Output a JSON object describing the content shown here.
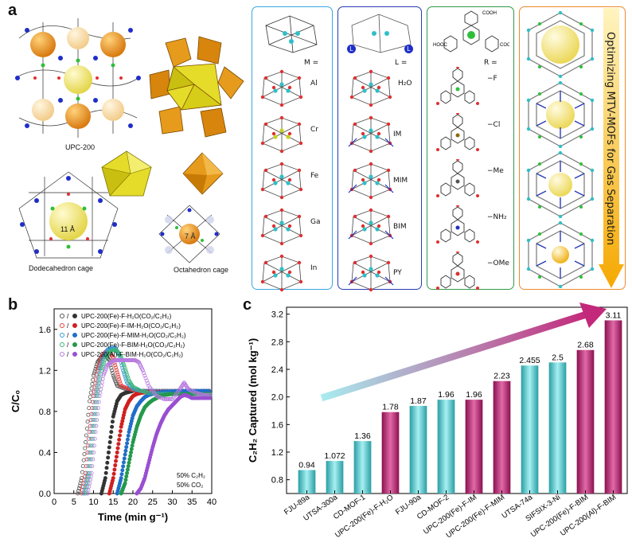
{
  "panel_a": {
    "letter": "a",
    "upc_label": "UPC-200",
    "dodeca_label": "Dodecahedron cage",
    "octa_label": "Octahedron cage",
    "dodeca_size": "11 Å",
    "octa_size": "7 Å",
    "metals_header": "M =",
    "metals": [
      "Al",
      "Cr",
      "Fe",
      "Ga",
      "In"
    ],
    "ligand_header": "L =",
    "ligands": [
      "H₂O",
      "IM",
      "MIM",
      "BIM",
      "PY"
    ],
    "r_header": "R =",
    "r_groups": [
      "−F",
      "−Cl",
      "−Me",
      "−NH₂",
      "−OMe"
    ],
    "arrow_text": "Optimizing MTV-MOFs for Gas Separation",
    "colors": {
      "metal_box": "#3aa7e0",
      "ligand_box": "#2a3bb5",
      "r_box": "#2f9a4a",
      "optimize_box": "#f08a2a",
      "arrow": "#f5b400"
    }
  },
  "panel_b": {
    "letter": "b",
    "chart_data": {
      "type": "scatter",
      "xlabel": "Time (min g⁻¹)",
      "ylabel": "C/C₀",
      "xlim": [
        0,
        40
      ],
      "ylim": [
        0,
        1.8
      ],
      "xticks": [
        0,
        5,
        10,
        15,
        20,
        25,
        30,
        35,
        40
      ],
      "yticks": [
        0.0,
        0.4,
        0.8,
        1.2,
        1.6
      ],
      "legend_position": "top-left",
      "annotation": [
        "50% C₂H₂",
        "50% CO₂"
      ],
      "series": [
        {
          "name": "UPC-200(Fe)-F-H₂O(CO₂/C₂H₂)",
          "color": "#555555",
          "x": [
            6,
            7,
            8,
            9,
            10,
            11,
            12,
            13,
            14,
            15,
            16,
            18,
            20,
            24,
            28,
            32,
            36,
            40
          ],
          "y": [
            0,
            0.15,
            0.5,
            0.9,
            1.15,
            1.28,
            1.33,
            1.35,
            1.3,
            1.15,
            1.05,
            1.02,
            1.0,
            1.0,
            1.0,
            1.0,
            1.0,
            1.0
          ]
        },
        {
          "name": "UPC-200(Fe)-F-H₂O(CO₂/C₂H₂)",
          "color": "#333333",
          "x": [
            12,
            13,
            14,
            15,
            16,
            17,
            18,
            19,
            20,
            24,
            28,
            32,
            36,
            40
          ],
          "y": [
            0,
            0.15,
            0.45,
            0.75,
            0.9,
            0.96,
            0.98,
            0.99,
            1.0,
            1.0,
            1.0,
            1.0,
            1.0,
            1.0
          ]
        },
        {
          "name": "UPC-200(Fe)-F-IM-H₂O(CO₂/C₂H₂)",
          "color": "#e83a3a",
          "x": [
            7,
            8,
            9,
            10,
            11,
            12,
            13,
            14,
            15,
            16,
            17,
            19,
            21,
            25,
            30,
            35,
            40
          ],
          "y": [
            0,
            0.2,
            0.6,
            0.95,
            1.2,
            1.33,
            1.38,
            1.39,
            1.32,
            1.18,
            1.05,
            1.02,
            1.0,
            1.0,
            1.0,
            1.0,
            1.0
          ]
        },
        {
          "name": "UPC-200(Fe)-F-IM-H₂O(CO₂/C₂H₂)",
          "color": "#d02020",
          "x": [
            14,
            15,
            16,
            17,
            18,
            19,
            20,
            21,
            22,
            24,
            28,
            32,
            36,
            40
          ],
          "y": [
            0,
            0.15,
            0.4,
            0.65,
            0.82,
            0.9,
            0.95,
            0.97,
            0.98,
            0.99,
            1.0,
            1.0,
            1.0,
            1.0
          ]
        },
        {
          "name": "UPC-200(Fe)-F-MIM-H₂O(CO₂/C₂H₂)",
          "color": "#3a9ad8",
          "x": [
            7.5,
            8.5,
            9.5,
            10.5,
            11.5,
            12.5,
            13.5,
            14.5,
            15.5,
            16.5,
            17.5,
            18.5,
            20,
            22,
            26,
            30,
            35,
            40
          ],
          "y": [
            0,
            0.2,
            0.6,
            0.95,
            1.2,
            1.33,
            1.4,
            1.42,
            1.42,
            1.35,
            1.2,
            1.08,
            1.02,
            1.0,
            1.0,
            1.0,
            1.0,
            1.0
          ]
        },
        {
          "name": "UPC-200(Fe)-F-MIM-H₂O(CO₂/C₂H₂)",
          "color": "#1f6fc8",
          "x": [
            16,
            17,
            18,
            19,
            20,
            21,
            22,
            23,
            24,
            26,
            28,
            32,
            36,
            40
          ],
          "y": [
            0,
            0.15,
            0.38,
            0.6,
            0.76,
            0.85,
            0.9,
            0.94,
            0.96,
            0.98,
            0.99,
            1.0,
            1.0,
            1.0
          ]
        },
        {
          "name": "UPC-200(Fe)-F-BIM-H₂O(CO₂/C₂H₂)",
          "color": "#3ab37a",
          "x": [
            8,
            9,
            10,
            11,
            12,
            13,
            14,
            15,
            16,
            17,
            18,
            19,
            20,
            22,
            24,
            27,
            30,
            35,
            40
          ],
          "y": [
            0,
            0.2,
            0.6,
            0.95,
            1.2,
            1.32,
            1.38,
            1.4,
            1.39,
            1.33,
            1.22,
            1.1,
            1.04,
            1.0,
            0.98,
            0.97,
            0.97,
            0.97,
            0.97
          ]
        },
        {
          "name": "UPC-200(Fe)-F-BIM-H₂O(CO₂/C₂H₂)",
          "color": "#23994c",
          "x": [
            17,
            18,
            19,
            20,
            21,
            22,
            23,
            24,
            25,
            26,
            27,
            28,
            30,
            34,
            38,
            40
          ],
          "y": [
            0,
            0.1,
            0.3,
            0.5,
            0.65,
            0.76,
            0.84,
            0.88,
            0.91,
            0.93,
            0.95,
            0.96,
            0.97,
            0.97,
            0.97,
            0.97
          ]
        },
        {
          "name": "UPC-200(Al)-F-BIM-H₂O(CO₂/C₂H₂)",
          "color": "#b87ae0",
          "x": [
            8.5,
            9.5,
            10.5,
            11.5,
            12.5,
            13.5,
            14.5,
            15.5,
            16.5,
            17.5,
            18.5,
            19.5,
            20.5,
            21.5,
            22.5,
            24,
            26,
            28,
            30,
            32,
            33,
            34,
            36,
            38,
            40
          ],
          "y": [
            0,
            0.2,
            0.6,
            0.95,
            1.15,
            1.25,
            1.28,
            1.3,
            1.3,
            1.3,
            1.3,
            1.3,
            1.3,
            1.28,
            1.2,
            1.05,
            0.95,
            0.92,
            0.92,
            1.02,
            1.08,
            1.02,
            0.98,
            0.96,
            0.96
          ]
        },
        {
          "name": "UPC-200(Al)-F-BIM-H₂O(CO₂/C₂H₂)",
          "color": "#9a4fd1",
          "x": [
            21,
            22,
            23,
            24,
            25,
            26,
            27,
            28,
            29,
            30,
            31,
            32,
            33,
            34,
            35,
            37,
            40
          ],
          "y": [
            0,
            0.05,
            0.15,
            0.3,
            0.45,
            0.58,
            0.68,
            0.76,
            0.82,
            0.86,
            0.9,
            0.94,
            0.96,
            0.95,
            0.93,
            0.93,
            0.93
          ]
        }
      ]
    }
  },
  "panel_c": {
    "letter": "c",
    "chart_data": {
      "type": "bar",
      "ylabel": "C₂H₂ Captured (mol kg⁻¹)",
      "ylim": [
        0.6,
        3.3
      ],
      "yticks": [
        0.8,
        1.2,
        1.6,
        2.0,
        2.4,
        2.8,
        3.2
      ],
      "grid": false,
      "categories": [
        "FJU-89a",
        "UTSA-300a",
        "CD-MOF-1",
        "UPC-200(Fe)-F-H₂O",
        "FJU-90a",
        "CD-MOF-2",
        "UPC-200(Fe)-F-IM",
        "UPC-200(Fe)-F-MIM",
        "UTSA-74a",
        "SIFSIX-3-Ni",
        "UPC-200(Fe)-F-BIM",
        "UPC-200(Al)-F-BIM"
      ],
      "values": [
        0.94,
        1.072,
        1.36,
        1.78,
        1.87,
        1.96,
        1.96,
        2.23,
        2.455,
        2.5,
        2.68,
        3.11
      ],
      "value_labels": [
        "0.94",
        "1.072",
        "1.36",
        "1.78",
        "1.87",
        "1.96",
        "1.96",
        "2.23",
        "2.455",
        "2.5",
        "2.68",
        "3.11"
      ],
      "highlight": [
        false,
        false,
        false,
        true,
        false,
        false,
        true,
        true,
        false,
        false,
        true,
        true
      ],
      "colors": {
        "normal": "#5cc8cc",
        "highlight": "#c4287a"
      }
    }
  }
}
